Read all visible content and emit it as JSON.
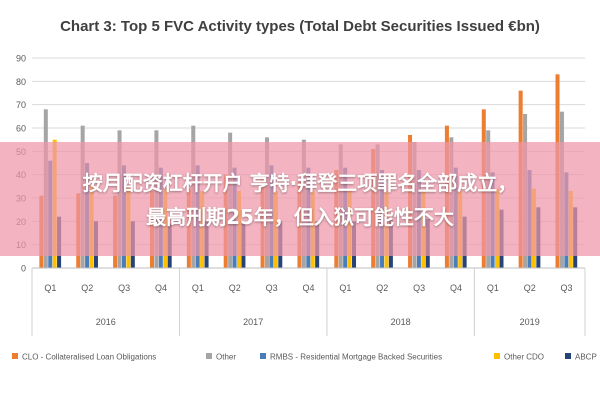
{
  "chart_data": {
    "type": "bar",
    "title": "Chart 3: Top 5 FVC Activity types (Total Debt Securities Issued €bn)",
    "ylim": [
      0,
      90
    ],
    "yticks": [
      0,
      10,
      20,
      30,
      40,
      50,
      60,
      70,
      80,
      90
    ],
    "grid": true,
    "legend_position": "bottom",
    "categories": [
      "Q1",
      "Q2",
      "Q3",
      "Q4",
      "Q1",
      "Q2",
      "Q3",
      "Q4",
      "Q1",
      "Q2",
      "Q3",
      "Q4",
      "Q1",
      "Q2",
      "Q3"
    ],
    "year_groups": [
      {
        "label": "2016",
        "count": 4
      },
      {
        "label": "2017",
        "count": 4
      },
      {
        "label": "2018",
        "count": 4
      },
      {
        "label": "2019",
        "count": 3
      }
    ],
    "series": [
      {
        "name": "CLO - Collateralised Loan Obligations",
        "color": "#ED7D31",
        "values": [
          31,
          32,
          31,
          33,
          34,
          40,
          38,
          37,
          42,
          51,
          57,
          61,
          68,
          76,
          83
        ]
      },
      {
        "name": "Other",
        "color": "#A5A5A5",
        "values": [
          68,
          61,
          59,
          59,
          61,
          58,
          56,
          55,
          53,
          53,
          54,
          56,
          59,
          66,
          67
        ]
      },
      {
        "name": "RMBS - Residential Mortgage Backed Securities",
        "color": "#4A7EBB",
        "values": [
          46,
          45,
          44,
          43,
          44,
          43,
          44,
          43,
          43,
          42,
          42,
          43,
          41,
          42,
          41
        ]
      },
      {
        "name": "Other CDO",
        "color": "#FFC000",
        "values": [
          55,
          38,
          35,
          34,
          33,
          33,
          33,
          33,
          33,
          33,
          33,
          33,
          34,
          34,
          33
        ]
      },
      {
        "name": "ABCP",
        "color": "#264478",
        "values": [
          22,
          20,
          20,
          19,
          20,
          20,
          20,
          20,
          20,
          21,
          21,
          22,
          25,
          26,
          26
        ]
      }
    ]
  },
  "overlay": {
    "line1": "按月配资杠杆开户 亨特·拜登三项罪名全部成立，",
    "line2": "最高刑期25年，但入狱可能性不大"
  }
}
